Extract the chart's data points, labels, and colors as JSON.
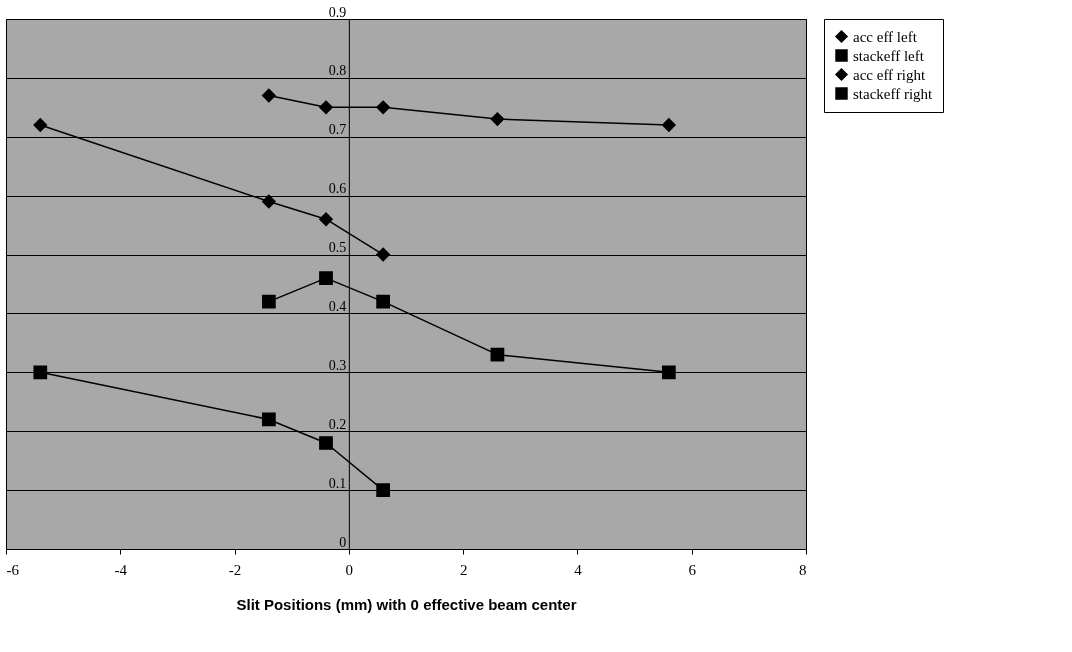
{
  "chart_data": {
    "type": "line",
    "xlabel": "Slit Positions (mm) with 0 effective beam center",
    "xlim": [
      -6,
      8
    ],
    "xticks": [
      -6,
      -4,
      -2,
      0,
      2,
      4,
      6,
      8
    ],
    "ylim": [
      0,
      0.9
    ],
    "yticks": [
      0,
      0.1,
      0.2,
      0.3,
      0.4,
      0.5,
      0.6,
      0.7,
      0.8,
      0.9
    ],
    "grid": "y",
    "legend": "right",
    "line_style": "solid",
    "series": [
      {
        "name": "acc eff left",
        "color": "#000000",
        "marker": "diamond",
        "x": [
          -5.4,
          -1.4,
          -0.4,
          0.6
        ],
        "values": [
          0.72,
          0.59,
          0.56,
          0.5
        ]
      },
      {
        "name": "stackeff left",
        "color": "#000000",
        "marker": "square",
        "x": [
          -5.4,
          -1.4,
          -0.4,
          0.6
        ],
        "values": [
          0.3,
          0.22,
          0.18,
          0.1
        ]
      },
      {
        "name": "acc eff right",
        "color": "#000000",
        "marker": "diamond",
        "x": [
          -1.4,
          -0.4,
          0.6,
          2.6,
          5.6
        ],
        "values": [
          0.77,
          0.75,
          0.75,
          0.73,
          0.72
        ]
      },
      {
        "name": "stackeff right",
        "color": "#000000",
        "marker": "square",
        "x": [
          -1.4,
          -0.4,
          0.6,
          2.6,
          5.6
        ],
        "values": [
          0.42,
          0.46,
          0.42,
          0.33,
          0.3
        ]
      }
    ]
  }
}
